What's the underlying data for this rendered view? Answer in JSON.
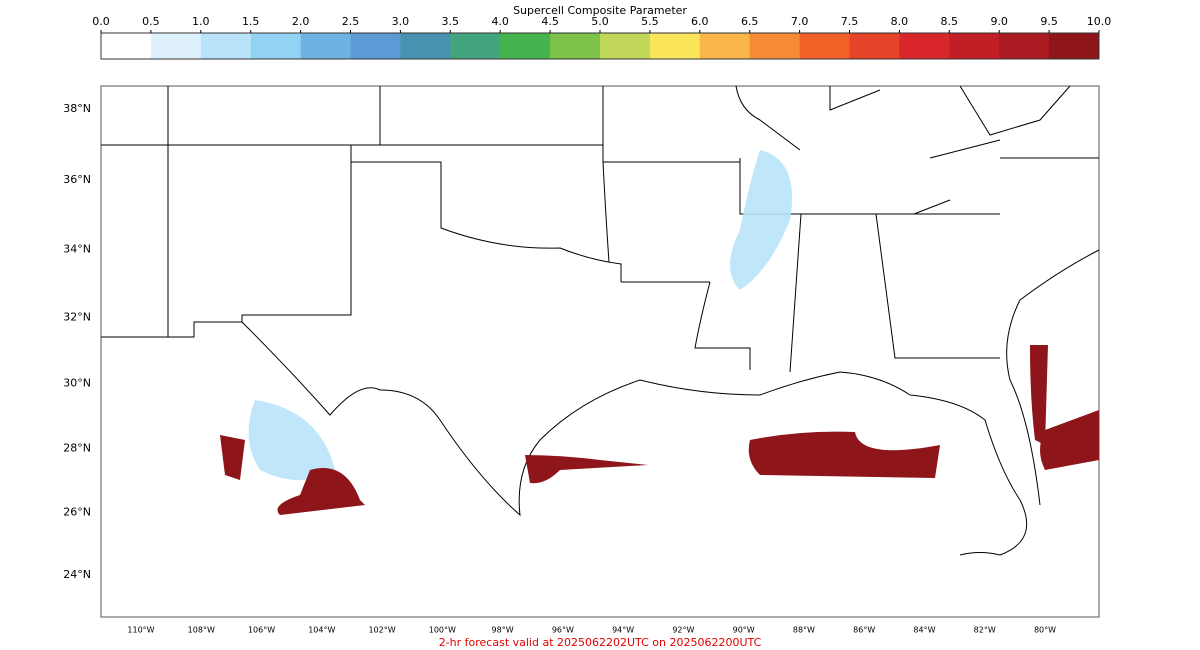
{
  "colorbar": {
    "title": "Supercell Composite Parameter",
    "ticks": [
      {
        "value": 0,
        "label": "0.0"
      },
      {
        "value": 0.5,
        "label": "0.5"
      },
      {
        "value": 1,
        "label": "1.0"
      },
      {
        "value": 1.5,
        "label": "1.5"
      },
      {
        "value": 2,
        "label": "2.0"
      },
      {
        "value": 2.5,
        "label": "2.5"
      },
      {
        "value": 3,
        "label": "3.0"
      },
      {
        "value": 3.5,
        "label": "3.5"
      },
      {
        "value": 4,
        "label": "4.0"
      },
      {
        "value": 4.5,
        "label": "4.5"
      },
      {
        "value": 5,
        "label": "5.0"
      },
      {
        "value": 5.5,
        "label": "5.5"
      },
      {
        "value": 6,
        "label": "6.0"
      },
      {
        "value": 6.5,
        "label": "6.5"
      },
      {
        "value": 7,
        "label": "7.0"
      },
      {
        "value": 7.5,
        "label": "7.5"
      },
      {
        "value": 8,
        "label": "8.0"
      },
      {
        "value": 8.5,
        "label": "8.5"
      },
      {
        "value": 9,
        "label": "9.0"
      },
      {
        "value": 9.5,
        "label": "9.5"
      },
      {
        "value": 10,
        "label": "10.0"
      }
    ],
    "colors": [
      "#ffffff",
      "#ddf0fb",
      "#b8e3f8",
      "#93d2f2",
      "#6db3e2",
      "#5a9bd5",
      "#4692b0",
      "#42a57d",
      "#45b34e",
      "#7fc24a",
      "#c0d75a",
      "#fae55b",
      "#f9b548",
      "#f68b35",
      "#f26128",
      "#e64429",
      "#d8262a",
      "#c11e25",
      "#a91b20",
      "#8e1519"
    ]
  },
  "map": {
    "lat_labels": [
      {
        "value": 38,
        "label": "38°N"
      },
      {
        "value": 36,
        "label": "36°N"
      },
      {
        "value": 34,
        "label": "34°N"
      },
      {
        "value": 32,
        "label": "32°N"
      },
      {
        "value": 30,
        "label": "30°N"
      },
      {
        "value": 28,
        "label": "28°N"
      },
      {
        "value": 26,
        "label": "26°N"
      },
      {
        "value": 24,
        "label": "24°N"
      }
    ],
    "lon_labels": [
      {
        "value": -110,
        "label": "110°W"
      },
      {
        "value": -108,
        "label": "108°W"
      },
      {
        "value": -106,
        "label": "106°W"
      },
      {
        "value": -104,
        "label": "104°W"
      },
      {
        "value": -102,
        "label": "102°W"
      },
      {
        "value": -100,
        "label": "100°W"
      },
      {
        "value": -98,
        "label": "98°W"
      },
      {
        "value": -96,
        "label": "96°W"
      },
      {
        "value": -94,
        "label": "94°W"
      },
      {
        "value": -92,
        "label": "92°W"
      },
      {
        "value": -90,
        "label": "90°W"
      },
      {
        "value": -88,
        "label": "88°W"
      },
      {
        "value": -86,
        "label": "86°W"
      },
      {
        "value": -84,
        "label": "84°W"
      },
      {
        "value": -82,
        "label": "82°W"
      },
      {
        "value": -80,
        "label": "80°W"
      }
    ]
  },
  "footer": "2-hr forecast valid at 2025062202UTC on 2025062200UTC"
}
